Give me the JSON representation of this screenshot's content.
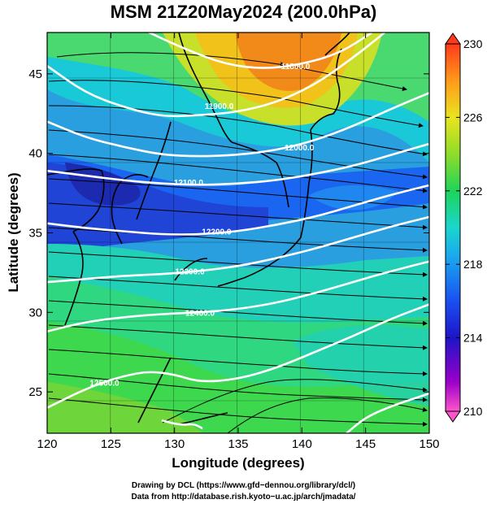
{
  "title": "MSM 21Z20May2024 (200.0hPa)",
  "chart_data": {
    "type": "heatmap",
    "title": "MSM 21Z20May2024 (200.0hPa)",
    "xlabel": "Longitude (degrees)",
    "ylabel": "Latitude  (degrees)",
    "xlim": [
      120,
      150
    ],
    "ylim": [
      22.4,
      47.6
    ],
    "x_ticks": [
      120,
      125,
      130,
      135,
      140,
      145,
      150
    ],
    "y_ticks": [
      25,
      30,
      35,
      40,
      45
    ],
    "colorbar": {
      "min": 210,
      "max": 230,
      "ticks": [
        210,
        214,
        218,
        222,
        226,
        230
      ]
    },
    "contours": [
      {
        "label": "11800.0",
        "label_lon": 139.5,
        "label_lat": 45.5,
        "points": [
          [
            128,
            47.6
          ],
          [
            131,
            46.5
          ],
          [
            134,
            45.6
          ],
          [
            137,
            45.3
          ],
          [
            140,
            45.6
          ],
          [
            143,
            46.3
          ],
          [
            145.5,
            47.6
          ]
        ]
      },
      {
        "label": "11900.0",
        "label_lon": 133.5,
        "label_lat": 43.0,
        "points": [
          [
            120,
            45.5
          ],
          [
            123,
            43.8
          ],
          [
            126,
            42.9
          ],
          [
            129,
            42.3
          ],
          [
            132,
            42.4
          ],
          [
            135,
            42.6
          ],
          [
            138,
            43.2
          ],
          [
            141,
            44.3
          ],
          [
            144,
            46.0
          ],
          [
            146.5,
            47.6
          ]
        ]
      },
      {
        "label": "12000.0",
        "label_lon": 139.8,
        "label_lat": 40.4,
        "points": [
          [
            120,
            42.0
          ],
          [
            123,
            41.0
          ],
          [
            126,
            40.4
          ],
          [
            129,
            39.9
          ],
          [
            132,
            39.8
          ],
          [
            135,
            39.9
          ],
          [
            138,
            40.2
          ],
          [
            141,
            40.8
          ],
          [
            144,
            41.7
          ],
          [
            147,
            42.8
          ],
          [
            150,
            43.8
          ]
        ]
      },
      {
        "label": "12100.0",
        "label_lon": 131.1,
        "label_lat": 38.2,
        "points": [
          [
            120,
            38.9
          ],
          [
            123,
            38.6
          ],
          [
            126,
            38.3
          ],
          [
            129,
            38.1
          ],
          [
            132,
            38.0
          ],
          [
            135,
            38.1
          ],
          [
            138,
            38.3
          ],
          [
            141,
            38.7
          ],
          [
            144,
            39.2
          ],
          [
            147,
            39.9
          ],
          [
            150,
            40.6
          ]
        ]
      },
      {
        "label": "12200.0",
        "label_lon": 133.3,
        "label_lat": 35.1,
        "points": [
          [
            120,
            35.6
          ],
          [
            123,
            35.3
          ],
          [
            126,
            35.1
          ],
          [
            129,
            34.9
          ],
          [
            132,
            34.9
          ],
          [
            135,
            35.1
          ],
          [
            138,
            35.5
          ],
          [
            141,
            36.0
          ],
          [
            144,
            36.7
          ],
          [
            147,
            37.4
          ],
          [
            150,
            38.0
          ]
        ]
      },
      {
        "label": "12300.0",
        "label_lon": 131.2,
        "label_lat": 32.6,
        "points": [
          [
            120,
            31.9
          ],
          [
            123,
            32.1
          ],
          [
            126,
            32.3
          ],
          [
            129,
            32.4
          ],
          [
            132,
            32.6
          ],
          [
            135,
            32.9
          ],
          [
            138,
            33.4
          ],
          [
            141,
            34.0
          ],
          [
            144,
            34.7
          ],
          [
            147,
            35.4
          ],
          [
            150,
            36.0
          ]
        ]
      },
      {
        "label": "12400.0",
        "label_lon": 132.0,
        "label_lat": 30.0,
        "points": [
          [
            120,
            28.8
          ],
          [
            123,
            29.4
          ],
          [
            126,
            29.7
          ],
          [
            129,
            29.9
          ],
          [
            132,
            30.0
          ],
          [
            135,
            30.2
          ],
          [
            138,
            30.6
          ],
          [
            141,
            31.2
          ],
          [
            144,
            31.9
          ],
          [
            147,
            32.6
          ],
          [
            150,
            33.2
          ]
        ]
      },
      {
        "label": "12500.0",
        "label_lon": 124.5,
        "label_lat": 25.6,
        "points": [
          [
            120,
            24.0
          ],
          [
            122,
            24.8
          ],
          [
            124,
            25.5
          ],
          [
            126,
            26.0
          ],
          [
            128,
            26.3
          ],
          [
            130,
            26.1
          ],
          [
            132,
            25.6
          ],
          [
            135,
            25.8
          ],
          [
            138,
            26.5
          ],
          [
            141,
            27.5
          ],
          [
            144,
            28.5
          ],
          [
            147,
            29.6
          ],
          [
            150,
            30.5
          ]
        ]
      },
      {
        "label": "",
        "label_lon": 0,
        "label_lat": 0,
        "points": [
          [
            129,
            23.2
          ],
          [
            130.5,
            22.9
          ],
          [
            131.5,
            23.0
          ],
          [
            132.2,
            22.7
          ]
        ]
      },
      {
        "label": "",
        "label_lon": 0,
        "label_lat": 0,
        "points": [
          [
            143.5,
            22.4
          ],
          [
            145,
            23.4
          ],
          [
            147,
            24.1
          ],
          [
            150,
            24.9
          ]
        ]
      }
    ]
  },
  "credits": {
    "line1": "Drawing by DCL (https://www.gfd−dennou.org/library/dcl/)",
    "line2": "Data from http://database.rish.kyoto−u.ac.jp/arch/jmadata/"
  }
}
